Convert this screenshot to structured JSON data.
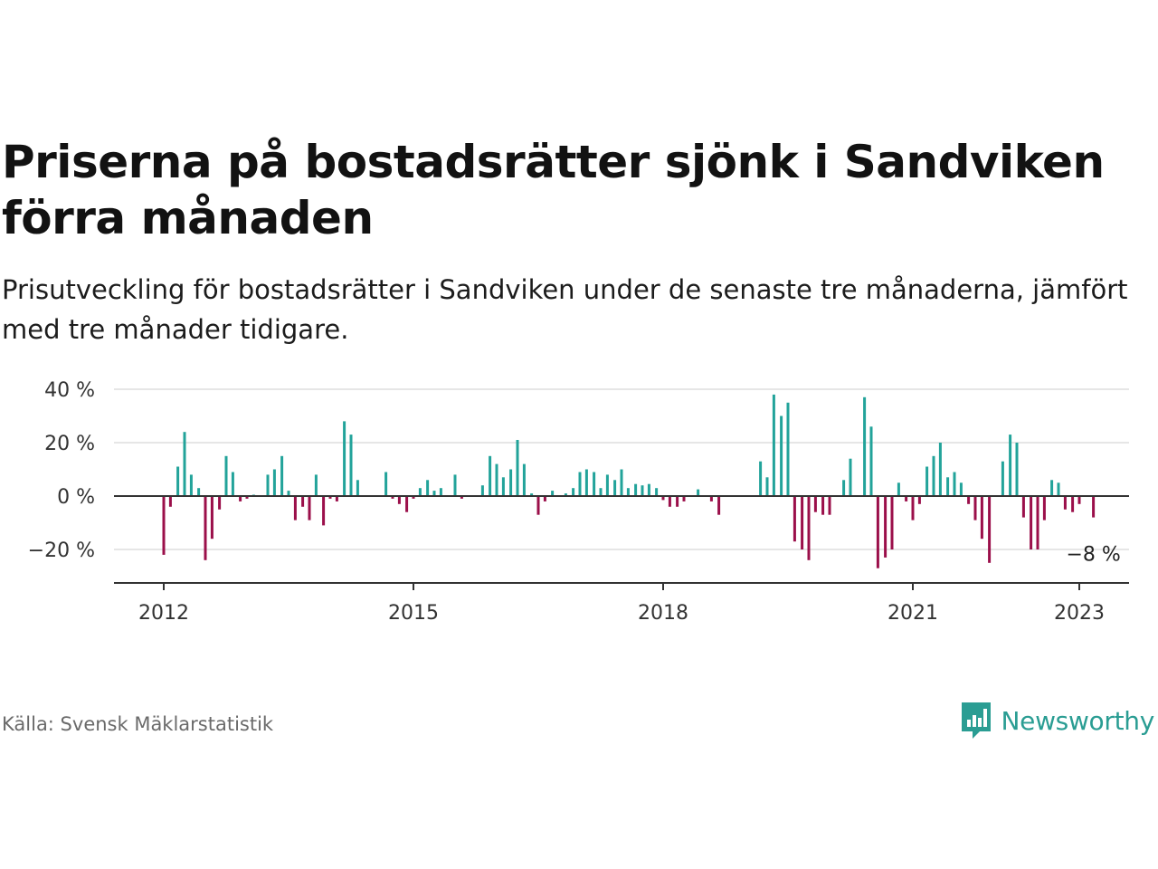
{
  "header": {
    "title": "Priserna på bostadsrätter sjönk i Sandviken förra månaden",
    "subtitle": "Prisutveckling för bostadsrätter i Sandviken under de senaste tre månaderna, jämfört med tre månader tidigare."
  },
  "footer": {
    "source": "Källa: Svensk Mäklarstatistik",
    "brand": "Newsworthy"
  },
  "colors": {
    "positive": "#22a39a",
    "negative": "#9b0f4a",
    "brand": "#2a9d93"
  },
  "chart_data": {
    "type": "bar",
    "x_ticks": [
      "2012",
      "2015",
      "2018",
      "2021",
      "2023"
    ],
    "y_ticks": [
      {
        "value": 40,
        "label": "40 %"
      },
      {
        "value": 20,
        "label": "20 %"
      },
      {
        "value": 0,
        "label": "0 %"
      },
      {
        "value": -20,
        "label": "−20 %"
      }
    ],
    "ylim": [
      -32,
      42
    ],
    "xlim": [
      2011.5,
      2023.6
    ],
    "grid": true,
    "annotation": "−8 %",
    "points": [
      {
        "x": 2012.0,
        "y": -22
      },
      {
        "x": 2012.08,
        "y": -4
      },
      {
        "x": 2012.17,
        "y": 11
      },
      {
        "x": 2012.25,
        "y": 24
      },
      {
        "x": 2012.33,
        "y": 8
      },
      {
        "x": 2012.42,
        "y": 3
      },
      {
        "x": 2012.5,
        "y": -24
      },
      {
        "x": 2012.58,
        "y": -16
      },
      {
        "x": 2012.67,
        "y": -5
      },
      {
        "x": 2012.75,
        "y": 15
      },
      {
        "x": 2012.83,
        "y": 9
      },
      {
        "x": 2012.92,
        "y": -2
      },
      {
        "x": 2013.0,
        "y": -1
      },
      {
        "x": 2013.08,
        "y": 0.5
      },
      {
        "x": 2013.25,
        "y": 8
      },
      {
        "x": 2013.33,
        "y": 10
      },
      {
        "x": 2013.42,
        "y": 15
      },
      {
        "x": 2013.5,
        "y": 2
      },
      {
        "x": 2013.58,
        "y": -9
      },
      {
        "x": 2013.67,
        "y": -4
      },
      {
        "x": 2013.75,
        "y": -9
      },
      {
        "x": 2013.83,
        "y": 8
      },
      {
        "x": 2013.92,
        "y": -11
      },
      {
        "x": 2014.0,
        "y": -1
      },
      {
        "x": 2014.08,
        "y": -2
      },
      {
        "x": 2014.17,
        "y": 28
      },
      {
        "x": 2014.25,
        "y": 23
      },
      {
        "x": 2014.33,
        "y": 6
      },
      {
        "x": 2014.67,
        "y": 9
      },
      {
        "x": 2014.75,
        "y": -1
      },
      {
        "x": 2014.83,
        "y": -3
      },
      {
        "x": 2014.92,
        "y": -6
      },
      {
        "x": 2015.0,
        "y": -1
      },
      {
        "x": 2015.08,
        "y": 3
      },
      {
        "x": 2015.17,
        "y": 6
      },
      {
        "x": 2015.25,
        "y": 2
      },
      {
        "x": 2015.33,
        "y": 3
      },
      {
        "x": 2015.5,
        "y": 8
      },
      {
        "x": 2015.58,
        "y": -1
      },
      {
        "x": 2015.83,
        "y": 4
      },
      {
        "x": 2015.92,
        "y": 15
      },
      {
        "x": 2016.0,
        "y": 12
      },
      {
        "x": 2016.08,
        "y": 7
      },
      {
        "x": 2016.17,
        "y": 10
      },
      {
        "x": 2016.25,
        "y": 21
      },
      {
        "x": 2016.33,
        "y": 12
      },
      {
        "x": 2016.42,
        "y": 1
      },
      {
        "x": 2016.5,
        "y": -7
      },
      {
        "x": 2016.58,
        "y": -2
      },
      {
        "x": 2016.67,
        "y": 2
      },
      {
        "x": 2016.83,
        "y": 1
      },
      {
        "x": 2016.92,
        "y": 3
      },
      {
        "x": 2017.0,
        "y": 9
      },
      {
        "x": 2017.08,
        "y": 10
      },
      {
        "x": 2017.17,
        "y": 9
      },
      {
        "x": 2017.25,
        "y": 3
      },
      {
        "x": 2017.33,
        "y": 8
      },
      {
        "x": 2017.42,
        "y": 6
      },
      {
        "x": 2017.5,
        "y": 10
      },
      {
        "x": 2017.58,
        "y": 3
      },
      {
        "x": 2017.67,
        "y": 4.5
      },
      {
        "x": 2017.75,
        "y": 4
      },
      {
        "x": 2017.83,
        "y": 4.5
      },
      {
        "x": 2017.92,
        "y": 3
      },
      {
        "x": 2018.0,
        "y": -1.5
      },
      {
        "x": 2018.08,
        "y": -4
      },
      {
        "x": 2018.17,
        "y": -4
      },
      {
        "x": 2018.25,
        "y": -2
      },
      {
        "x": 2018.42,
        "y": 2.5
      },
      {
        "x": 2018.58,
        "y": -2
      },
      {
        "x": 2018.67,
        "y": -7
      },
      {
        "x": 2019.17,
        "y": 13
      },
      {
        "x": 2019.25,
        "y": 7
      },
      {
        "x": 2019.33,
        "y": 38
      },
      {
        "x": 2019.42,
        "y": 30
      },
      {
        "x": 2019.5,
        "y": 35
      },
      {
        "x": 2019.58,
        "y": -17
      },
      {
        "x": 2019.67,
        "y": -20
      },
      {
        "x": 2019.75,
        "y": -24
      },
      {
        "x": 2019.83,
        "y": -6
      },
      {
        "x": 2019.92,
        "y": -7
      },
      {
        "x": 2020.0,
        "y": -7
      },
      {
        "x": 2020.17,
        "y": 6
      },
      {
        "x": 2020.25,
        "y": 14
      },
      {
        "x": 2020.42,
        "y": 37
      },
      {
        "x": 2020.5,
        "y": 26
      },
      {
        "x": 2020.58,
        "y": -27
      },
      {
        "x": 2020.67,
        "y": -23
      },
      {
        "x": 2020.75,
        "y": -20
      },
      {
        "x": 2020.83,
        "y": 5
      },
      {
        "x": 2020.92,
        "y": -2
      },
      {
        "x": 2021.0,
        "y": -9
      },
      {
        "x": 2021.08,
        "y": -3
      },
      {
        "x": 2021.17,
        "y": 11
      },
      {
        "x": 2021.25,
        "y": 15
      },
      {
        "x": 2021.33,
        "y": 20
      },
      {
        "x": 2021.42,
        "y": 7
      },
      {
        "x": 2021.5,
        "y": 9
      },
      {
        "x": 2021.58,
        "y": 5
      },
      {
        "x": 2021.67,
        "y": -3
      },
      {
        "x": 2021.75,
        "y": -9
      },
      {
        "x": 2021.83,
        "y": -16
      },
      {
        "x": 2021.92,
        "y": -25
      },
      {
        "x": 2022.08,
        "y": 13
      },
      {
        "x": 2022.17,
        "y": 23
      },
      {
        "x": 2022.25,
        "y": 20
      },
      {
        "x": 2022.33,
        "y": -8
      },
      {
        "x": 2022.42,
        "y": -20
      },
      {
        "x": 2022.5,
        "y": -20
      },
      {
        "x": 2022.58,
        "y": -9
      },
      {
        "x": 2022.67,
        "y": 6
      },
      {
        "x": 2022.75,
        "y": 5
      },
      {
        "x": 2022.83,
        "y": -5
      },
      {
        "x": 2022.92,
        "y": -6
      },
      {
        "x": 2023.0,
        "y": -3
      },
      {
        "x": 2023.17,
        "y": -8
      }
    ]
  }
}
